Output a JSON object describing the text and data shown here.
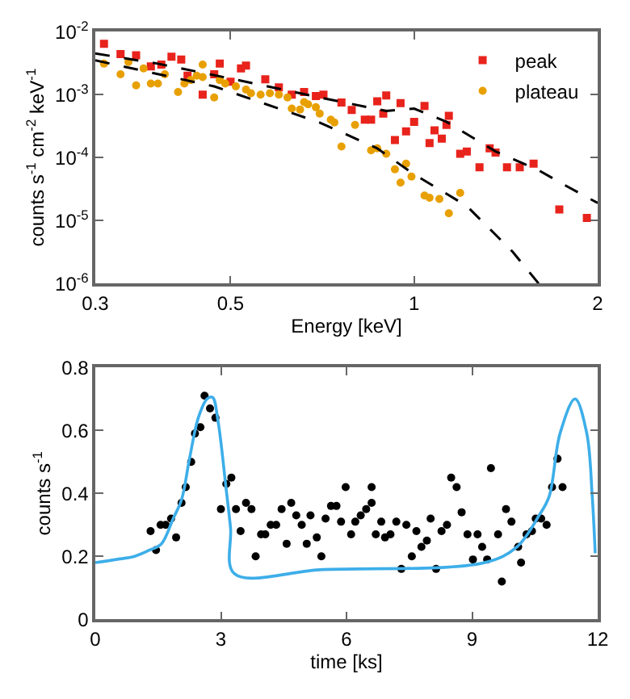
{
  "chart_data": [
    {
      "type": "scatter",
      "xlabel": "Energy [keV]",
      "ylabel": "counts s$^{-1}$ cm$^{-2}$ keV$^{-1}$",
      "log": "xy",
      "legend": "top right",
      "xlim": [
        0.3,
        2
      ],
      "xticks": [
        0.3,
        0.5,
        1,
        2
      ],
      "ylim": [
        1e-06,
        0.01
      ],
      "yticks": [
        {
          "value": 1e-06,
          "label": "10$^{-6}$"
        },
        {
          "value": 1e-05,
          "label": "10$^{-5}$"
        },
        {
          "value": 0.0001,
          "label": "10$^{-4}$"
        },
        {
          "value": 0.001,
          "label": "10$^{-3}$"
        },
        {
          "value": 0.01,
          "label": "10$^{-2}$"
        }
      ],
      "series": [
        {
          "name": "peak",
          "type": "scatter",
          "marker": "square",
          "color": "#e8231c",
          "x": [
            0.31,
            0.33,
            0.35,
            0.37,
            0.385,
            0.4,
            0.415,
            0.425,
            0.45,
            0.47,
            0.48,
            0.5,
            0.52,
            0.53,
            0.57,
            0.6,
            0.63,
            0.66,
            0.69,
            0.71,
            0.76,
            0.79,
            0.83,
            0.85,
            0.87,
            0.89,
            0.9,
            0.93,
            0.95,
            0.97,
            1.0,
            1.04,
            1.06,
            1.08,
            1.11,
            1.13,
            1.14,
            1.19,
            1.22,
            1.28,
            1.33,
            1.36,
            1.42,
            1.49,
            1.57,
            1.73,
            1.92
          ],
          "values": [
            0.0064,
            0.0044,
            0.0042,
            0.0028,
            0.003,
            0.004,
            0.0036,
            0.002,
            0.001,
            0.0021,
            0.0031,
            0.0016,
            0.0026,
            0.0029,
            0.00175,
            0.0013,
            0.001,
            0.0011,
            0.00095,
            0.001,
            0.00075,
            0.00057,
            0.0004,
            0.0004,
            0.00078,
            0.0005,
            0.00097,
            0.00019,
            0.00073,
            0.00026,
            0.00037,
            0.00066,
            0.00017,
            0.00027,
            0.0002,
            0.00033,
            0.00046,
            0.000115,
            0.000125,
            7e-05,
            0.00014,
            0.00012,
            7e-05,
            7e-05,
            8e-05,
            1.5e-05,
            1.1e-05
          ]
        },
        {
          "name": "plateau",
          "type": "scatter",
          "marker": "circle",
          "color": "#e8a000",
          "x": [
            0.31,
            0.33,
            0.34,
            0.35,
            0.36,
            0.37,
            0.38,
            0.39,
            0.41,
            0.42,
            0.43,
            0.44,
            0.45,
            0.45,
            0.47,
            0.48,
            0.49,
            0.51,
            0.53,
            0.54,
            0.56,
            0.58,
            0.6,
            0.62,
            0.63,
            0.65,
            0.66,
            0.67,
            0.69,
            0.7,
            0.73,
            0.74,
            0.76,
            0.8,
            0.85,
            0.87,
            0.9,
            0.93,
            0.95,
            0.97,
            0.99,
            1.04,
            1.06,
            1.1,
            1.14,
            1.19
          ],
          "values": [
            0.0031,
            0.0021,
            0.0033,
            0.0014,
            0.0026,
            0.0015,
            0.0015,
            0.0021,
            0.0011,
            0.0015,
            0.0017,
            0.002,
            0.0019,
            0.003,
            0.0009,
            0.0017,
            0.0015,
            0.00135,
            0.0012,
            0.00105,
            0.001,
            0.00105,
            0.001,
            0.0009,
            0.0006,
            0.00058,
            0.00076,
            0.0007,
            0.00063,
            0.0005,
            0.0004,
            0.00036,
            0.00015,
            0.00033,
            0.00013,
            0.00014,
            0.000115,
            6.5e-05,
            4e-05,
            8e-05,
            5e-05,
            2.5e-05,
            2.3e-05,
            2.2e-05,
            1.3e-05,
            2.75e-05
          ]
        },
        {
          "type": "line",
          "line_style": "dashed",
          "color": "#000000",
          "x": [
            0.3,
            0.38,
            0.5,
            0.7,
            0.9,
            1.0,
            1.13,
            1.36,
            1.6,
            1.78,
            2.0
          ],
          "values": [
            0.0045,
            0.0031,
            0.0018,
            0.0009,
            0.00055,
            0.0006,
            0.00037,
            0.000125,
            6.3e-05,
            3.5e-05,
            1.9e-05
          ]
        },
        {
          "type": "line",
          "line_style": "dashed",
          "color": "#000000",
          "x": [
            0.3,
            0.47,
            0.7,
            0.87,
            1.0,
            1.22,
            1.45,
            1.6
          ],
          "values": [
            0.0035,
            0.00135,
            0.00036,
            0.00014,
            5.4e-05,
            1.7e-05,
            3.2e-06,
            1e-06
          ]
        }
      ]
    },
    {
      "type": "scatter",
      "xlabel": "time [ks]",
      "ylabel": "counts s$^{-1}$",
      "legend": false,
      "xlim": [
        0,
        12
      ],
      "xticks": [
        0,
        3,
        6,
        9,
        12
      ],
      "ylim": [
        0,
        0.8
      ],
      "yticks": [
        0,
        0.2,
        0.4,
        0.6,
        0.8
      ],
      "series": [
        {
          "type": "scatter",
          "marker": "circle",
          "color": "#000000",
          "x": [
            1.32,
            1.45,
            1.56,
            1.68,
            1.81,
            1.93,
            2.06,
            2.16,
            2.29,
            2.38,
            2.51,
            2.61,
            2.74,
            2.87,
            3.0,
            3.13,
            3.25,
            3.36,
            3.47,
            3.6,
            3.73,
            3.83,
            3.96,
            4.06,
            4.19,
            4.32,
            4.45,
            4.57,
            4.68,
            4.8,
            4.93,
            5.05,
            5.14,
            5.29,
            5.4,
            5.5,
            5.63,
            5.76,
            5.87,
            5.98,
            6.11,
            6.21,
            6.34,
            6.47,
            6.6,
            6.6,
            6.7,
            6.83,
            6.92,
            7.05,
            7.19,
            7.31,
            7.43,
            7.56,
            7.67,
            7.79,
            7.92,
            8.01,
            8.14,
            8.27,
            8.4,
            8.5,
            8.63,
            8.75,
            8.89,
            9.02,
            9.13,
            9.24,
            9.36,
            9.45,
            9.62,
            9.71,
            9.81,
            9.94,
            10.1,
            10.17,
            10.3,
            10.43,
            10.52,
            10.65,
            10.78,
            10.91,
            11.04,
            11.16
          ],
          "values": [
            0.28,
            0.22,
            0.3,
            0.3,
            0.32,
            0.26,
            0.37,
            0.42,
            0.5,
            0.59,
            0.61,
            0.71,
            0.67,
            0.64,
            0.35,
            0.43,
            0.45,
            0.35,
            0.28,
            0.37,
            0.35,
            0.2,
            0.27,
            0.27,
            0.3,
            0.3,
            0.35,
            0.24,
            0.37,
            0.33,
            0.3,
            0.24,
            0.33,
            0.26,
            0.2,
            0.32,
            0.36,
            0.36,
            0.31,
            0.42,
            0.27,
            0.31,
            0.33,
            0.35,
            0.37,
            0.42,
            0.27,
            0.31,
            0.26,
            0.27,
            0.31,
            0.16,
            0.3,
            0.2,
            0.28,
            0.23,
            0.25,
            0.32,
            0.16,
            0.28,
            0.3,
            0.45,
            0.42,
            0.34,
            0.27,
            0.19,
            0.27,
            0.23,
            0.19,
            0.48,
            0.27,
            0.12,
            0.35,
            0.31,
            0.23,
            0.18,
            0.27,
            0.28,
            0.32,
            0.32,
            0.3,
            0.42,
            0.51,
            0.42
          ]
        },
        {
          "type": "line",
          "line_style": "solid",
          "color": "#3daee9",
          "x": [
            0,
            0.5,
            0.94,
            1.3,
            1.58,
            1.86,
            2.06,
            2.25,
            2.46,
            2.67,
            2.8,
            2.93,
            3.12,
            3.23,
            3.32,
            5.44,
            9.3,
            10.07,
            10.6,
            10.84,
            11.1,
            11.46,
            11.74,
            11.87,
            11.94
          ],
          "values": [
            0.18,
            0.19,
            0.2,
            0.22,
            0.24,
            0.32,
            0.38,
            0.51,
            0.64,
            0.7,
            0.705,
            0.63,
            0.42,
            0.29,
            0.145,
            0.158,
            0.18,
            0.23,
            0.33,
            0.39,
            0.59,
            0.7,
            0.59,
            0.39,
            0.21
          ]
        }
      ]
    }
  ]
}
